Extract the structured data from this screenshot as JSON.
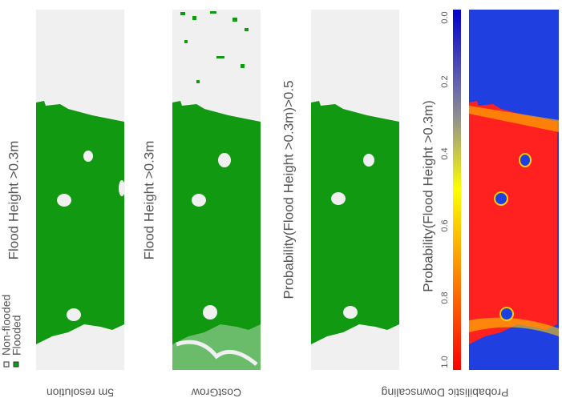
{
  "panels": [
    {
      "title": "Flood Height >0.3m",
      "caption": "5m resolution"
    },
    {
      "title": "Flood Height >0.3m",
      "caption": "CostGrow"
    },
    {
      "title": "Probability(Flood Height >0.3m)>0.5",
      "caption": "Probabilistic Downscaling"
    },
    {
      "title": "Probability(Flood Height >0.3m)"
    }
  ],
  "legend": [
    "Non-flooded",
    "Flooded"
  ],
  "colorbar": {
    "labels": [
      "0.0",
      "0.2",
      "0.4",
      "0.6",
      "0.8",
      "1.0"
    ]
  }
}
